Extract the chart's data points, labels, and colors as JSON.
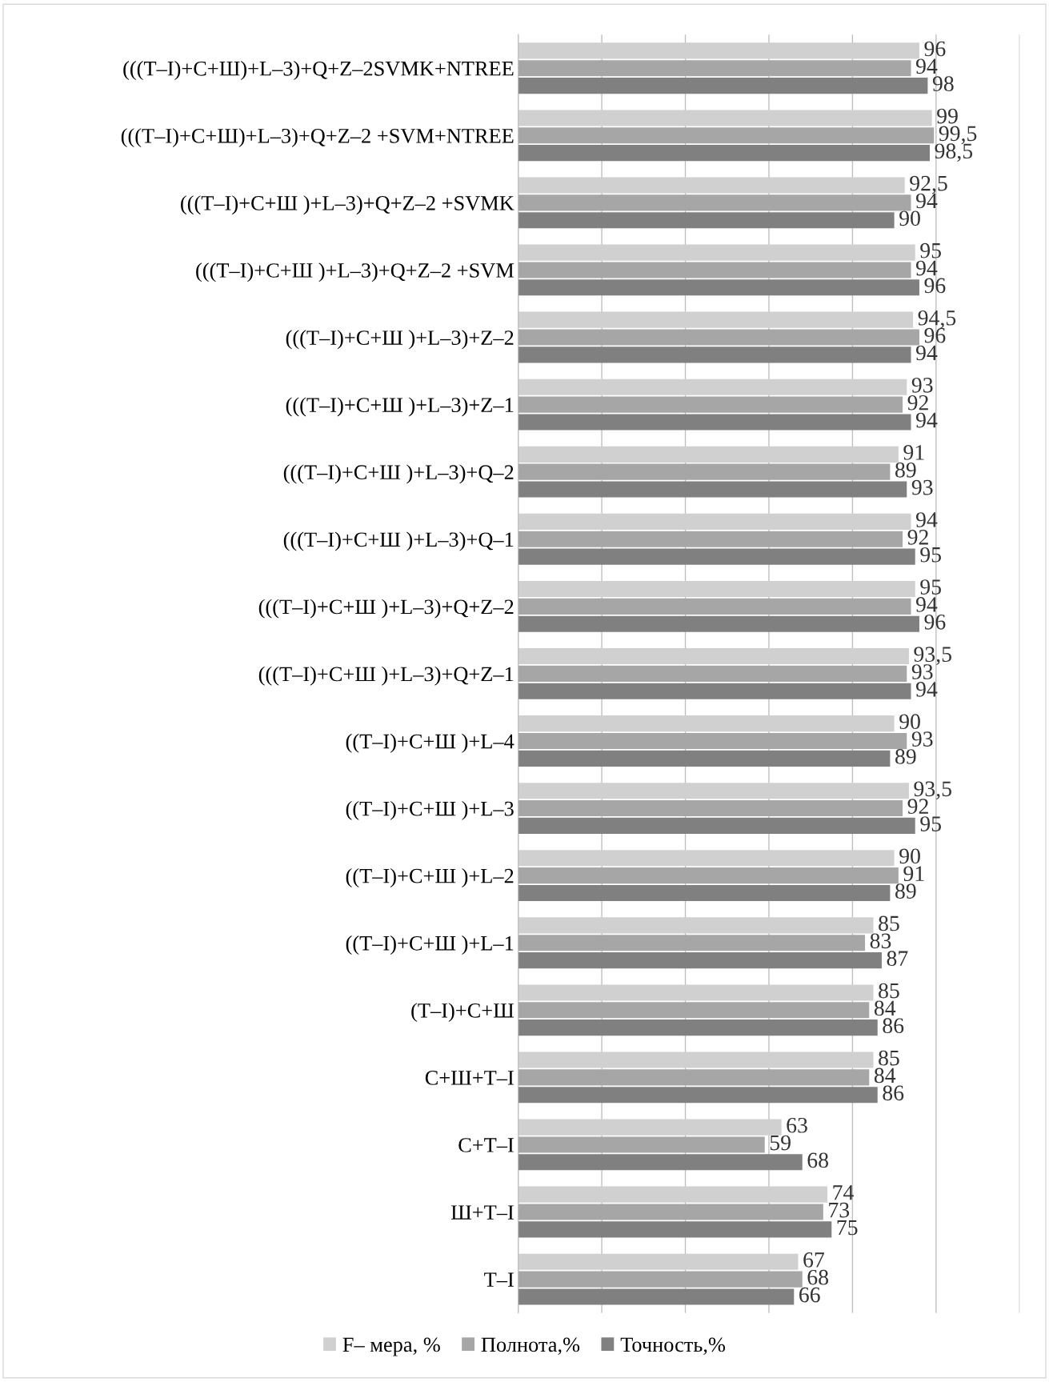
{
  "chart_data": {
    "type": "bar",
    "orientation": "horizontal",
    "categories": [
      "(((Т–I)+С+Ш)+L–3)+Q+Z–2SVMK+NTREE",
      "(((Т–I)+С+Ш)+L–3)+Q+Z–2 +SVM+NTREE",
      "(((Т–I)+С+Ш )+L–3)+Q+Z–2 +SVMK",
      "(((Т–I)+С+Ш )+L–3)+Q+Z–2 +SVM",
      "(((Т–I)+С+Ш )+L–3)+Z–2",
      "(((Т–I)+С+Ш )+L–3)+Z–1",
      "(((Т–I)+С+Ш )+L–3)+Q–2",
      "(((Т–I)+С+Ш )+L–3)+Q–1",
      "(((Т–I)+С+Ш )+L–3)+Q+Z–2",
      "(((Т–I)+С+Ш )+L–3)+Q+Z–1",
      "((Т–I)+С+Ш )+L–4",
      "((Т–I)+С+Ш )+L–3",
      "((Т–I)+С+Ш )+L–2",
      "((Т–I)+С+Ш )+L–1",
      "(Т–I)+С+Ш",
      "С+Ш+Т–I",
      "С+Т–I",
      "Ш+Т–I",
      "Т–I"
    ],
    "series": [
      {
        "name": "F– мера, %",
        "color": "#d0d0d0",
        "values": [
          96,
          99,
          92.5,
          95,
          94.5,
          93,
          91,
          94,
          95,
          93.5,
          90,
          93.5,
          90,
          85,
          85,
          85,
          63,
          74,
          67
        ],
        "value_labels": [
          "96",
          "99",
          "92,5",
          "95",
          "94,5",
          "93",
          "91",
          "94",
          "95",
          "93,5",
          "90",
          "93,5",
          "90",
          "85",
          "85",
          "85",
          "63",
          "74",
          "67"
        ]
      },
      {
        "name": "Полнота,%",
        "color": "#a6a6a6",
        "values": [
          94,
          99.5,
          94,
          94,
          96,
          92,
          89,
          92,
          94,
          93,
          93,
          92,
          91,
          83,
          84,
          84,
          59,
          73,
          68
        ],
        "value_labels": [
          "94",
          "99,5",
          "94",
          "94",
          "96",
          "92",
          "89",
          "92",
          "94",
          "93",
          "93",
          "92",
          "91",
          "83",
          "84",
          "84",
          "59",
          "73",
          "68"
        ]
      },
      {
        "name": "Точность,%",
        "color": "#808080",
        "values": [
          98,
          98.5,
          90,
          96,
          94,
          94,
          93,
          95,
          96,
          94,
          89,
          95,
          89,
          87,
          86,
          86,
          68,
          75,
          66
        ],
        "value_labels": [
          "98",
          "98,5",
          "90",
          "96",
          "94",
          "94",
          "93",
          "95",
          "96",
          "94",
          "89",
          "95",
          "89",
          "87",
          "86",
          "86",
          "68",
          "75",
          "66"
        ]
      }
    ],
    "xlim": [
      0,
      120
    ],
    "xticks": [
      {
        "value": 0,
        "label": null
      },
      {
        "value": 20,
        "label": null
      },
      {
        "value": 40,
        "label": null
      },
      {
        "value": 60,
        "label": null
      },
      {
        "value": 80,
        "label": null
      },
      {
        "value": 100,
        "label": null
      },
      {
        "value": 120,
        "label": null
      }
    ],
    "tick_labels": "y",
    "grid": "x",
    "legend": "bottom"
  }
}
